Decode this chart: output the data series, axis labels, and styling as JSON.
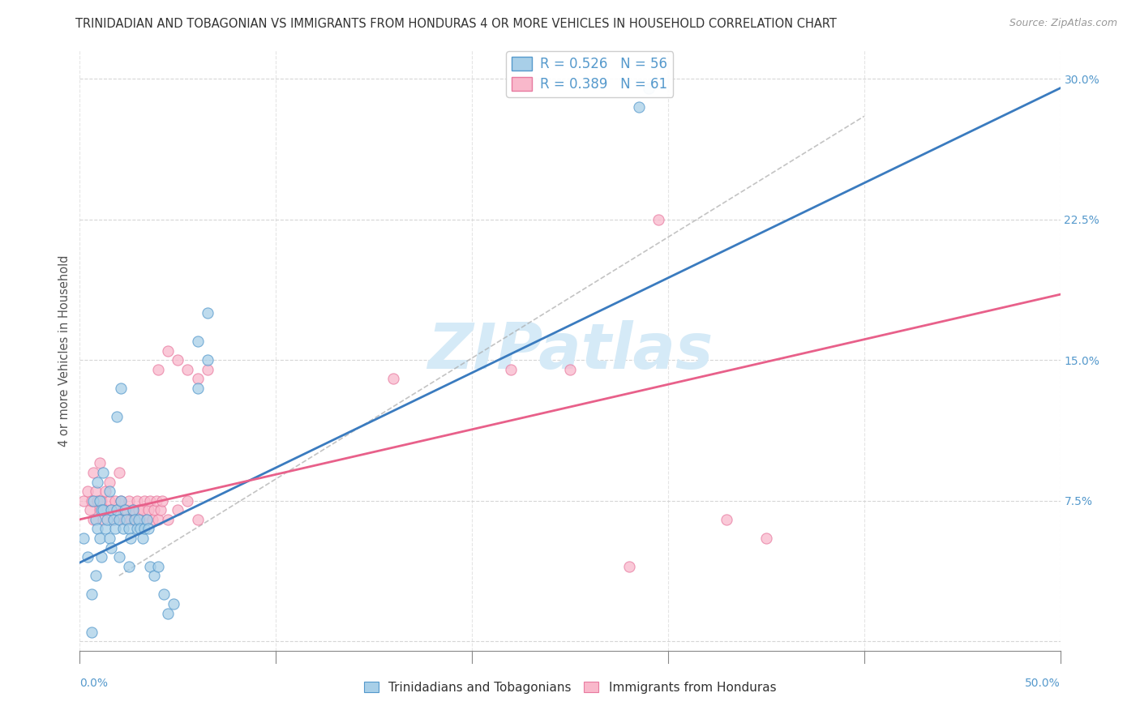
{
  "title": "TRINIDADIAN AND TOBAGONIAN VS IMMIGRANTS FROM HONDURAS 4 OR MORE VEHICLES IN HOUSEHOLD CORRELATION CHART",
  "source": "Source: ZipAtlas.com",
  "xlabel_bottom_left": "0.0%",
  "xlabel_bottom_right": "50.0%",
  "xlabel_legend1": "Trinidadians and Tobagonians",
  "xlabel_legend2": "Immigrants from Honduras",
  "ylabel": "4 or more Vehicles in Household",
  "xlim": [
    0.0,
    0.5
  ],
  "ylim": [
    -0.005,
    0.315
  ],
  "xticks": [
    0.0,
    0.1,
    0.2,
    0.3,
    0.4,
    0.5
  ],
  "yticks": [
    0.0,
    0.075,
    0.15,
    0.225,
    0.3
  ],
  "yticklabels": [
    "",
    "7.5%",
    "15.0%",
    "22.5%",
    "30.0%"
  ],
  "blue_R": 0.526,
  "blue_N": 56,
  "pink_R": 0.389,
  "pink_N": 61,
  "blue_color": "#a8cfe8",
  "pink_color": "#f9b8cb",
  "blue_edge_color": "#5599cc",
  "pink_edge_color": "#e87aa0",
  "blue_line_color": "#3a7bbf",
  "pink_line_color": "#e8608a",
  "blue_line": [
    [
      0.0,
      0.042
    ],
    [
      0.5,
      0.295
    ]
  ],
  "pink_line": [
    [
      0.0,
      0.065
    ],
    [
      0.5,
      0.185
    ]
  ],
  "ref_line": [
    [
      0.02,
      0.035
    ],
    [
      0.4,
      0.28
    ]
  ],
  "blue_scatter": [
    [
      0.002,
      0.055
    ],
    [
      0.004,
      0.045
    ],
    [
      0.006,
      0.025
    ],
    [
      0.006,
      0.005
    ],
    [
      0.007,
      0.075
    ],
    [
      0.008,
      0.065
    ],
    [
      0.008,
      0.035
    ],
    [
      0.009,
      0.085
    ],
    [
      0.009,
      0.06
    ],
    [
      0.01,
      0.075
    ],
    [
      0.01,
      0.055
    ],
    [
      0.011,
      0.07
    ],
    [
      0.011,
      0.045
    ],
    [
      0.012,
      0.09
    ],
    [
      0.012,
      0.07
    ],
    [
      0.013,
      0.06
    ],
    [
      0.014,
      0.065
    ],
    [
      0.015,
      0.08
    ],
    [
      0.015,
      0.055
    ],
    [
      0.016,
      0.07
    ],
    [
      0.016,
      0.05
    ],
    [
      0.017,
      0.065
    ],
    [
      0.018,
      0.06
    ],
    [
      0.019,
      0.07
    ],
    [
      0.02,
      0.065
    ],
    [
      0.02,
      0.045
    ],
    [
      0.021,
      0.075
    ],
    [
      0.022,
      0.06
    ],
    [
      0.023,
      0.07
    ],
    [
      0.024,
      0.065
    ],
    [
      0.025,
      0.06
    ],
    [
      0.025,
      0.04
    ],
    [
      0.026,
      0.055
    ],
    [
      0.027,
      0.07
    ],
    [
      0.028,
      0.065
    ],
    [
      0.029,
      0.06
    ],
    [
      0.03,
      0.065
    ],
    [
      0.031,
      0.06
    ],
    [
      0.032,
      0.055
    ],
    [
      0.033,
      0.06
    ],
    [
      0.034,
      0.065
    ],
    [
      0.035,
      0.06
    ],
    [
      0.036,
      0.04
    ],
    [
      0.038,
      0.035
    ],
    [
      0.04,
      0.04
    ],
    [
      0.043,
      0.025
    ],
    [
      0.045,
      0.015
    ],
    [
      0.048,
      0.02
    ],
    [
      0.019,
      0.12
    ],
    [
      0.021,
      0.135
    ],
    [
      0.06,
      0.16
    ],
    [
      0.065,
      0.175
    ],
    [
      0.06,
      0.135
    ],
    [
      0.065,
      0.15
    ],
    [
      0.285,
      0.285
    ],
    [
      0.29,
      0.295
    ]
  ],
  "pink_scatter": [
    [
      0.002,
      0.075
    ],
    [
      0.004,
      0.08
    ],
    [
      0.005,
      0.07
    ],
    [
      0.006,
      0.075
    ],
    [
      0.007,
      0.065
    ],
    [
      0.008,
      0.08
    ],
    [
      0.009,
      0.075
    ],
    [
      0.01,
      0.07
    ],
    [
      0.011,
      0.075
    ],
    [
      0.012,
      0.065
    ],
    [
      0.013,
      0.08
    ],
    [
      0.014,
      0.07
    ],
    [
      0.015,
      0.075
    ],
    [
      0.016,
      0.07
    ],
    [
      0.017,
      0.065
    ],
    [
      0.018,
      0.075
    ],
    [
      0.019,
      0.07
    ],
    [
      0.02,
      0.065
    ],
    [
      0.021,
      0.075
    ],
    [
      0.022,
      0.07
    ],
    [
      0.023,
      0.065
    ],
    [
      0.024,
      0.07
    ],
    [
      0.025,
      0.075
    ],
    [
      0.026,
      0.065
    ],
    [
      0.027,
      0.07
    ],
    [
      0.028,
      0.065
    ],
    [
      0.029,
      0.075
    ],
    [
      0.03,
      0.07
    ],
    [
      0.031,
      0.065
    ],
    [
      0.032,
      0.07
    ],
    [
      0.033,
      0.075
    ],
    [
      0.034,
      0.065
    ],
    [
      0.035,
      0.07
    ],
    [
      0.036,
      0.075
    ],
    [
      0.037,
      0.065
    ],
    [
      0.038,
      0.07
    ],
    [
      0.039,
      0.075
    ],
    [
      0.04,
      0.065
    ],
    [
      0.041,
      0.07
    ],
    [
      0.042,
      0.075
    ],
    [
      0.045,
      0.065
    ],
    [
      0.05,
      0.07
    ],
    [
      0.055,
      0.075
    ],
    [
      0.06,
      0.065
    ],
    [
      0.007,
      0.09
    ],
    [
      0.01,
      0.095
    ],
    [
      0.015,
      0.085
    ],
    [
      0.02,
      0.09
    ],
    [
      0.04,
      0.145
    ],
    [
      0.045,
      0.155
    ],
    [
      0.05,
      0.15
    ],
    [
      0.055,
      0.145
    ],
    [
      0.06,
      0.14
    ],
    [
      0.065,
      0.145
    ],
    [
      0.16,
      0.14
    ],
    [
      0.22,
      0.145
    ],
    [
      0.25,
      0.145
    ],
    [
      0.295,
      0.225
    ],
    [
      0.33,
      0.065
    ],
    [
      0.35,
      0.055
    ],
    [
      0.28,
      0.04
    ]
  ],
  "watermark": "ZIPatlas",
  "watermark_color": "#d5eaf7",
  "background_color": "#ffffff",
  "grid_color": "#cccccc"
}
